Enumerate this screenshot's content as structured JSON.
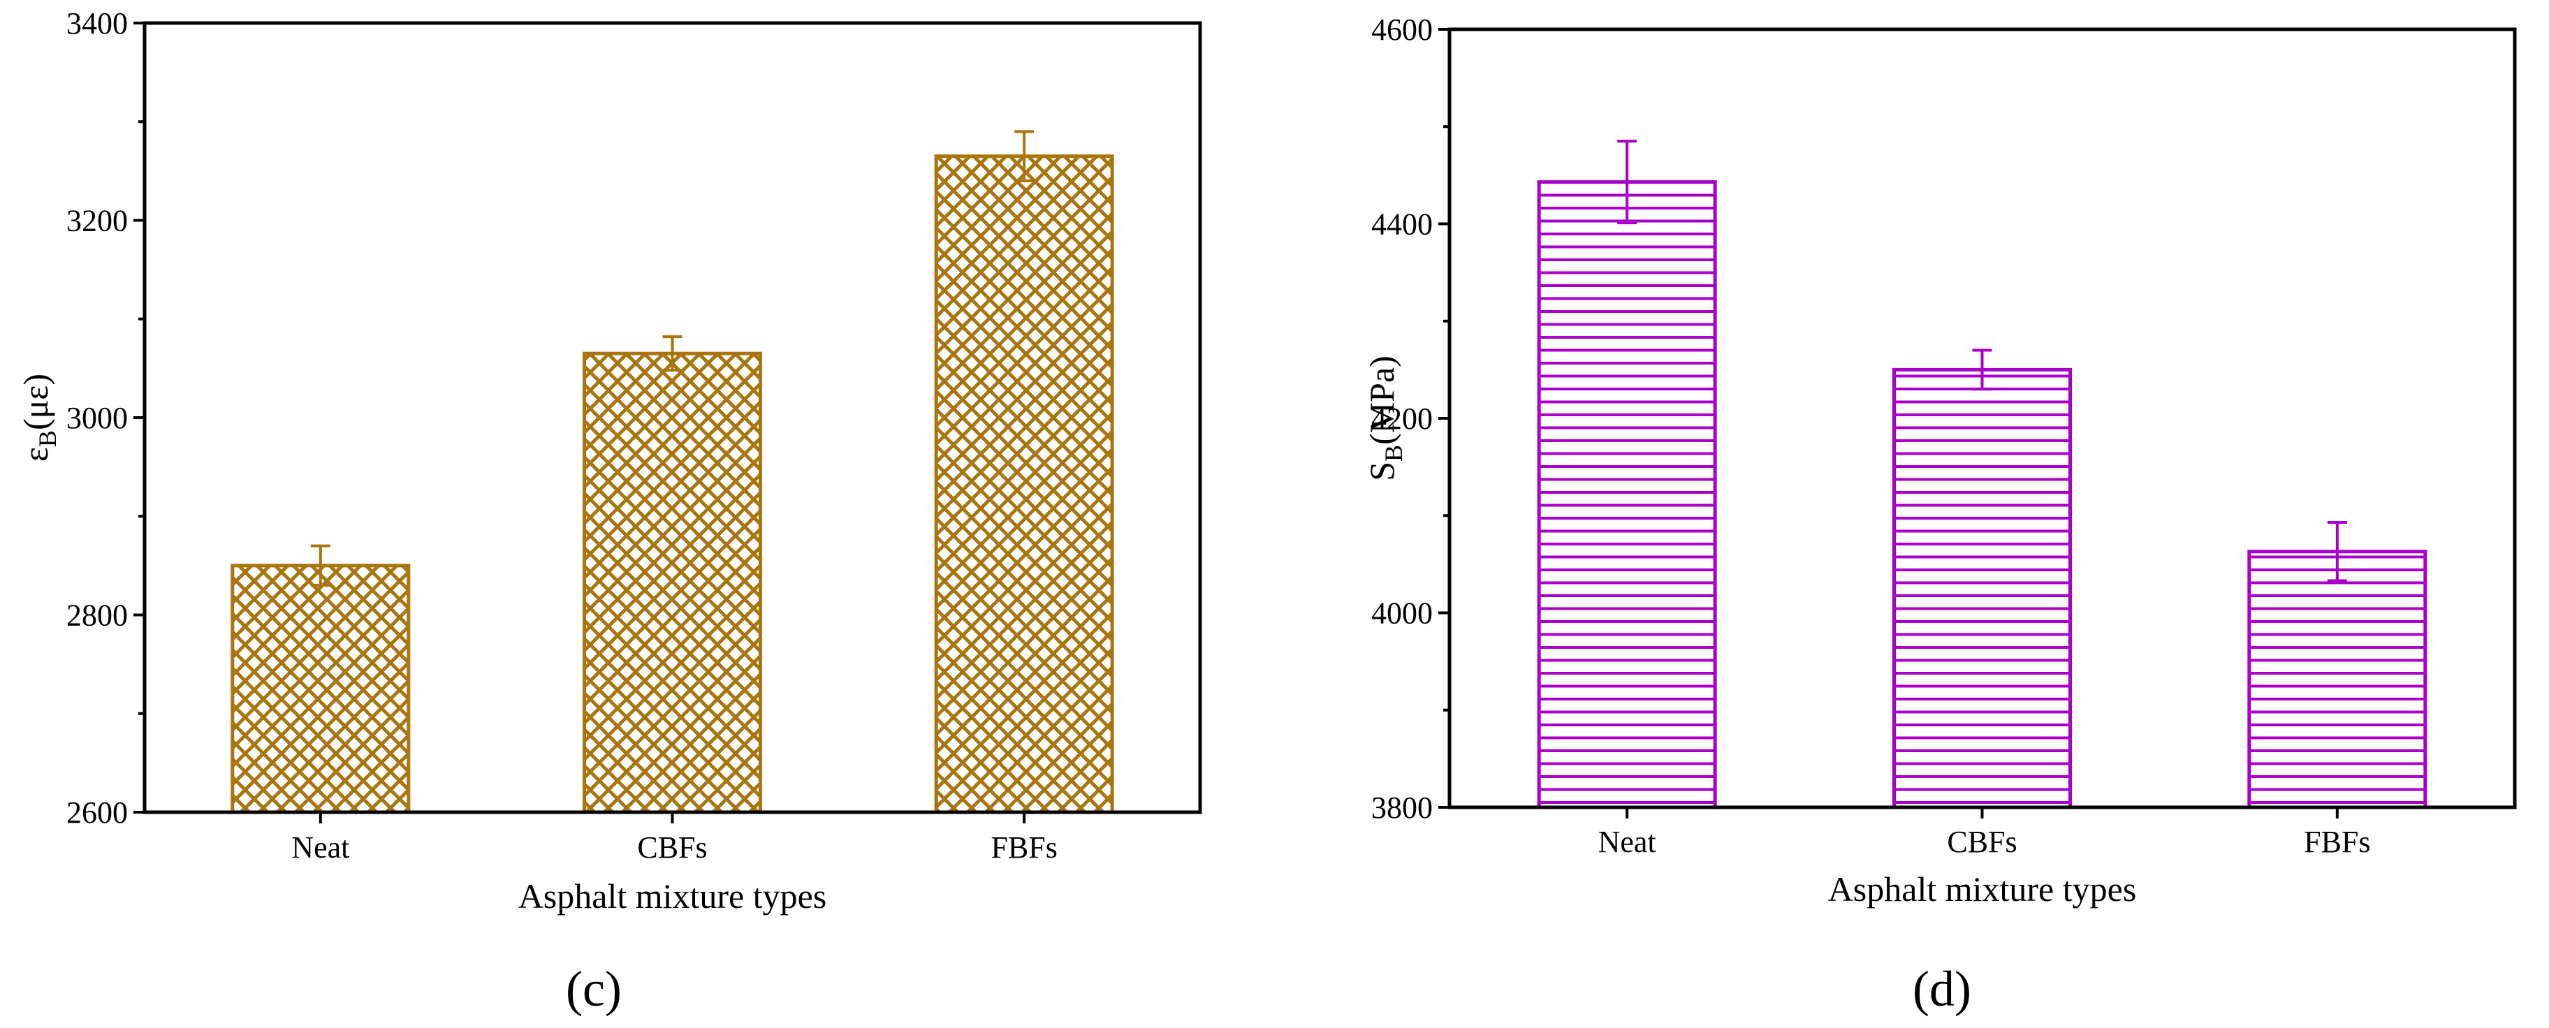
{
  "chart_data": [
    {
      "panel": "(c)",
      "type": "bar",
      "categories": [
        "Neat",
        "CBFs",
        "FBFs"
      ],
      "values": [
        2850,
        3065,
        3265
      ],
      "errors": [
        20,
        17,
        25
      ],
      "xlabel": "Asphalt mixture types",
      "ylabel_main": "ε",
      "ylabel_sub": "B",
      "ylabel_unit": "(με)",
      "ylim": [
        2600,
        3400
      ],
      "yticks": [
        2600,
        2800,
        3000,
        3200,
        3400
      ],
      "color": "#A8750F",
      "pattern": "crosshatch",
      "grid": false
    },
    {
      "panel": "(d)",
      "type": "bar",
      "categories": [
        "Neat",
        "CBFs",
        "FBFs"
      ],
      "values": [
        4443,
        4250,
        4063
      ],
      "errors": [
        42,
        20,
        30
      ],
      "xlabel": "Asphalt mixture types",
      "ylabel_main": "S",
      "ylabel_sub": "B",
      "ylabel_unit": "(MPa)",
      "ylim": [
        3800,
        4600
      ],
      "yticks": [
        3800,
        4000,
        4200,
        4400,
        4600
      ],
      "color": "#A800C8",
      "pattern": "horizontal",
      "grid": false
    }
  ]
}
